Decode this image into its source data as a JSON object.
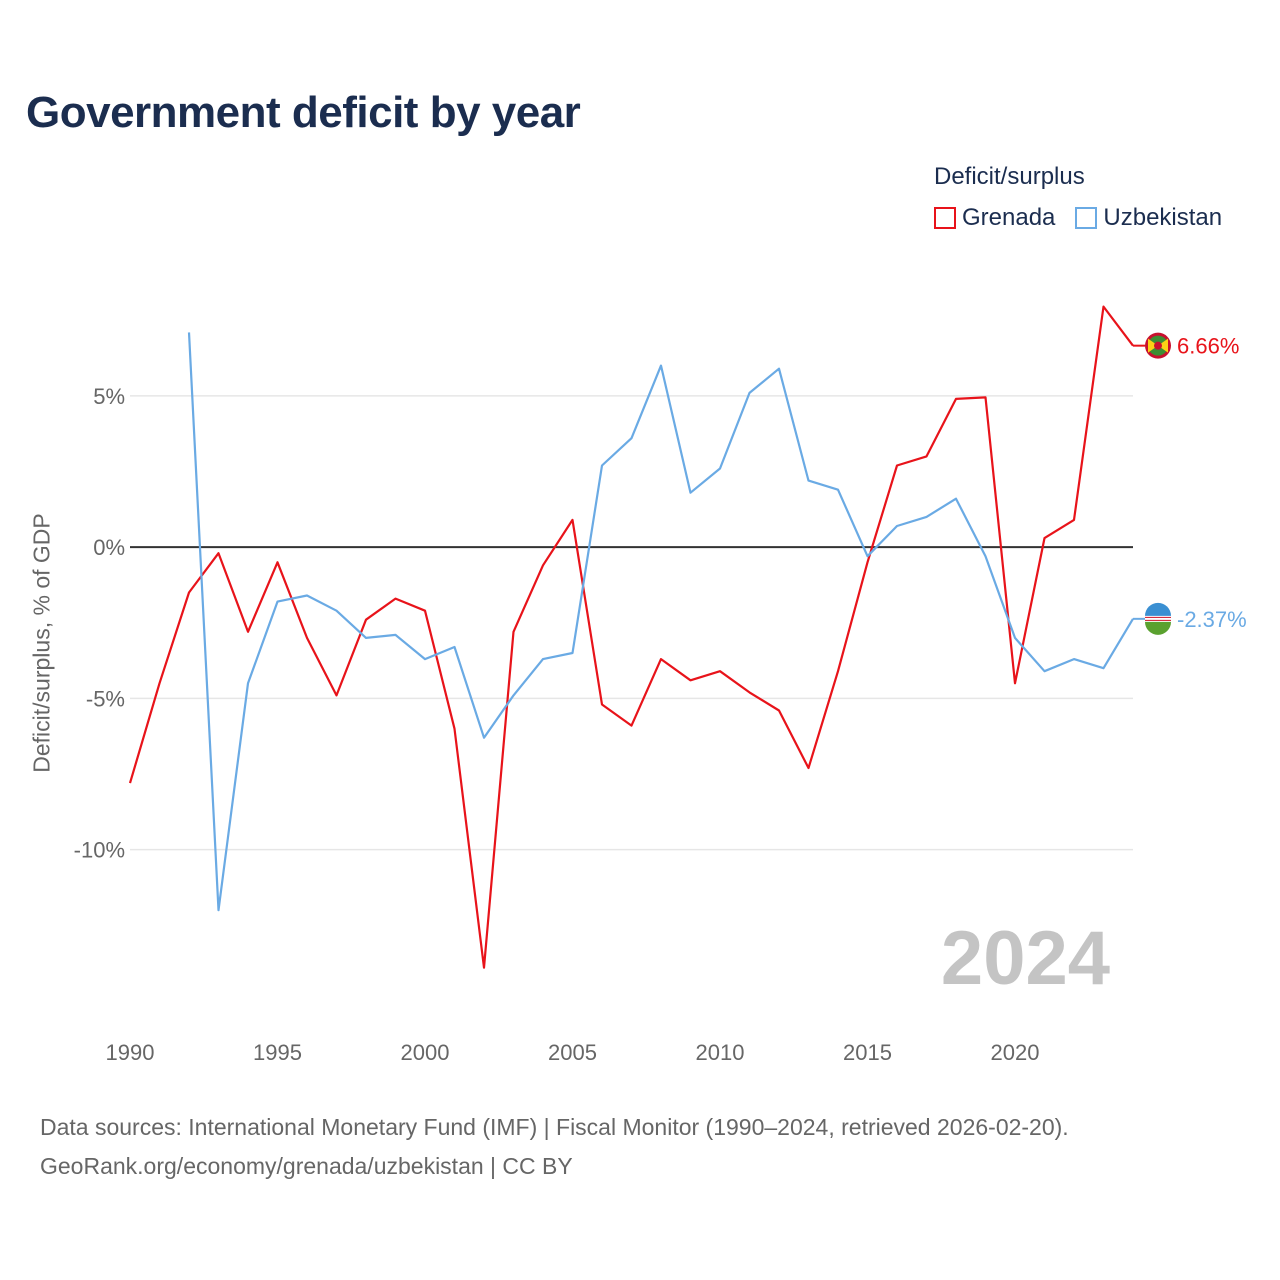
{
  "title": "Government deficit by year",
  "legend": {
    "title": "Deficit/surplus",
    "items": [
      {
        "label": "Grenada",
        "color": "#e8131a"
      },
      {
        "label": "Uzbekistan",
        "color": "#6aaae4"
      }
    ]
  },
  "watermark_year": "2024",
  "sources": {
    "line1": "Data sources: International Monetary Fund (IMF) | Fiscal Monitor (1990–2024, retrieved 2026-02-20).",
    "line2": "GeoRank.org/economy/grenada/uzbekistan | CC BY"
  },
  "chart_data": {
    "type": "line",
    "title": "Government deficit by year",
    "xlabel": "",
    "ylabel": "Deficit/surplus, % of GDP",
    "xlim": [
      1990,
      2024
    ],
    "ylim": [
      -15.3,
      8.5
    ],
    "xticks": [
      {
        "value": 1990,
        "label": "1990"
      },
      {
        "value": 1995,
        "label": "1995"
      },
      {
        "value": 2000,
        "label": "2000"
      },
      {
        "value": 2005,
        "label": "2005"
      },
      {
        "value": 2010,
        "label": "2010"
      },
      {
        "value": 2015,
        "label": "2015"
      },
      {
        "value": 2020,
        "label": "2020"
      }
    ],
    "yticks": [
      {
        "value": 5,
        "label": "5%"
      },
      {
        "value": 0,
        "label": "0%"
      },
      {
        "value": -5,
        "label": "-5%"
      },
      {
        "value": -10,
        "label": "-10%"
      }
    ],
    "series": [
      {
        "name": "Grenada",
        "color": "#e8131a",
        "end_label": "6.66%",
        "x": [
          1990,
          1991,
          1992,
          1993,
          1994,
          1995,
          1996,
          1997,
          1998,
          1999,
          2000,
          2001,
          2002,
          2003,
          2004,
          2005,
          2006,
          2007,
          2008,
          2009,
          2010,
          2011,
          2012,
          2013,
          2014,
          2015,
          2016,
          2017,
          2018,
          2019,
          2020,
          2021,
          2022,
          2023,
          2024
        ],
        "values": [
          -7.8,
          -4.5,
          -1.5,
          -0.2,
          -2.8,
          -0.5,
          -3.0,
          -4.9,
          -2.4,
          -1.7,
          -2.1,
          -6.0,
          -13.9,
          -2.8,
          -0.6,
          0.9,
          -5.2,
          -5.9,
          -3.7,
          -4.4,
          -4.1,
          -4.8,
          -5.4,
          -7.3,
          -4.1,
          -0.5,
          2.7,
          3.0,
          4.9,
          4.95,
          -4.5,
          0.3,
          0.9,
          7.95,
          6.66
        ]
      },
      {
        "name": "Uzbekistan",
        "color": "#6aaae4",
        "end_label": "-2.37%",
        "x": [
          1992,
          1993,
          1994,
          1995,
          1996,
          1997,
          1998,
          1999,
          2000,
          2001,
          2002,
          2003,
          2004,
          2005,
          2006,
          2007,
          2008,
          2009,
          2010,
          2011,
          2012,
          2013,
          2014,
          2015,
          2016,
          2017,
          2018,
          2019,
          2020,
          2021,
          2022,
          2023,
          2024
        ],
        "values": [
          7.1,
          -12.0,
          -4.5,
          -1.8,
          -1.6,
          -2.1,
          -3.0,
          -2.9,
          -3.7,
          -3.3,
          -6.3,
          -4.9,
          -3.7,
          -3.5,
          2.7,
          3.6,
          6.0,
          1.8,
          2.6,
          5.1,
          5.9,
          2.2,
          1.9,
          -0.3,
          0.7,
          1.0,
          1.6,
          -0.3,
          -3.0,
          -4.1,
          -3.7,
          -4.0,
          -2.37
        ]
      }
    ]
  }
}
